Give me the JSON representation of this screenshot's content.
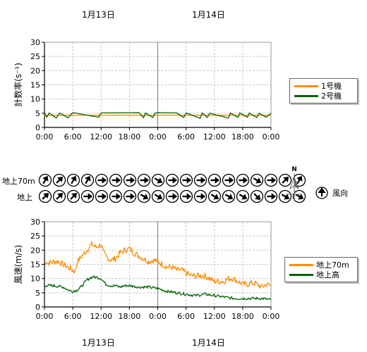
{
  "dates": {
    "top": [
      "1月13日",
      "1月14日"
    ],
    "bottom": [
      "1月13日",
      "1月14日"
    ]
  },
  "time_ticks": [
    "0:00",
    "6:00",
    "12:00",
    "18:00",
    "0:00",
    "6:00",
    "12:00",
    "18:00",
    "0:00"
  ],
  "wind_direction": {
    "rows": [
      {
        "label": "地上70m",
        "angles": [
          30,
          45,
          30,
          30,
          90,
          90,
          90,
          90,
          120,
          90,
          90,
          90,
          90,
          90,
          90,
          120,
          90,
          45,
          30
        ]
      },
      {
        "label": "地上",
        "angles": [
          45,
          45,
          45,
          90,
          90,
          90,
          90,
          120,
          120,
          90,
          90,
          90,
          120,
          120,
          120,
          135,
          90,
          120,
          120
        ]
      }
    ],
    "north_label": "N",
    "legend_label": "風向"
  },
  "chart_data": [
    {
      "type": "line",
      "ylabel": "計数率(s⁻¹)",
      "ylim": [
        0,
        30
      ],
      "yticks": [
        0,
        5,
        10,
        15,
        20,
        25,
        30
      ],
      "x_range_hours": [
        0,
        48
      ],
      "series": [
        {
          "name": "1号機",
          "color": "#ff8c00",
          "values": [
            [
              0,
              4.3
            ],
            [
              6,
              4.3
            ],
            [
              12,
              4.3
            ],
            [
              18,
              4.3
            ],
            [
              24,
              4.3
            ],
            [
              30,
              4.3
            ],
            [
              36,
              4.3
            ],
            [
              42,
              4.3
            ],
            [
              48,
              4.3
            ]
          ]
        },
        {
          "name": "2号機",
          "color": "#006400",
          "values": [
            [
              0,
              5.2
            ],
            [
              0.5,
              3.6
            ],
            [
              1,
              5.1
            ],
            [
              2.5,
              3.3
            ],
            [
              3.2,
              5.1
            ],
            [
              5,
              3.4
            ],
            [
              6,
              5.2
            ],
            [
              11.5,
              3.6
            ],
            [
              12,
              5.1
            ],
            [
              20,
              5.2
            ],
            [
              21,
              3.4
            ],
            [
              21.4,
              5.1
            ],
            [
              23,
              3.5
            ],
            [
              23.4,
              5.0
            ],
            [
              24,
              5.2
            ],
            [
              28,
              5.1
            ],
            [
              29.5,
              3.5
            ],
            [
              30,
              5.1
            ],
            [
              33,
              3.2
            ],
            [
              33.4,
              5.1
            ],
            [
              34.5,
              3.5
            ],
            [
              35,
              5.0
            ],
            [
              39,
              3.3
            ],
            [
              39.4,
              5.1
            ],
            [
              41,
              3.5
            ],
            [
              41.4,
              5.1
            ],
            [
              43,
              3.6
            ],
            [
              43.4,
              5.1
            ],
            [
              45,
              3.5
            ],
            [
              45.5,
              5.0
            ],
            [
              47,
              3.6
            ],
            [
              48,
              5.0
            ]
          ]
        }
      ]
    },
    {
      "type": "line",
      "ylabel": "風速(m/s)",
      "ylim": [
        0,
        30
      ],
      "yticks": [
        0,
        5,
        10,
        15,
        20,
        25,
        30
      ],
      "x_range_hours": [
        0,
        48
      ],
      "series": [
        {
          "name": "地上70m",
          "color": "#ff8c00",
          "values": [
            [
              0,
              16
            ],
            [
              1,
              15.5
            ],
            [
              2,
              16
            ],
            [
              3,
              16
            ],
            [
              4,
              15
            ],
            [
              5,
              14
            ],
            [
              6,
              13
            ],
            [
              6.5,
              12.5
            ],
            [
              7,
              16
            ],
            [
              8,
              18
            ],
            [
              9,
              20
            ],
            [
              10,
              22
            ],
            [
              11,
              21
            ],
            [
              12,
              22
            ],
            [
              12.5,
              19
            ],
            [
              13,
              18
            ],
            [
              14,
              16.5
            ],
            [
              15,
              17
            ],
            [
              16,
              19
            ],
            [
              17,
              20
            ],
            [
              18,
              20.5
            ],
            [
              19,
              19
            ],
            [
              20,
              18
            ],
            [
              21,
              17
            ],
            [
              22,
              16
            ],
            [
              23,
              16.5
            ],
            [
              24,
              16
            ],
            [
              25,
              15
            ],
            [
              26,
              14
            ],
            [
              27,
              14
            ],
            [
              28,
              13
            ],
            [
              29,
              13
            ],
            [
              30,
              12
            ],
            [
              31,
              11
            ],
            [
              32,
              11
            ],
            [
              33,
              11
            ],
            [
              34,
              11
            ],
            [
              35,
              10
            ],
            [
              36,
              9
            ],
            [
              37,
              9
            ],
            [
              38,
              9
            ],
            [
              39,
              10
            ],
            [
              40,
              10
            ],
            [
              41,
              9
            ],
            [
              42,
              8
            ],
            [
              43,
              8
            ],
            [
              44,
              8.5
            ],
            [
              45,
              8
            ],
            [
              46,
              7
            ],
            [
              47,
              8
            ],
            [
              48,
              7.5
            ]
          ]
        },
        {
          "name": "地上高",
          "color": "#006400",
          "values": [
            [
              0,
              7.5
            ],
            [
              2,
              7.5
            ],
            [
              4,
              7
            ],
            [
              5,
              6
            ],
            [
              6,
              5.5
            ],
            [
              7,
              6
            ],
            [
              8,
              7.5
            ],
            [
              9,
              9.5
            ],
            [
              10,
              10.5
            ],
            [
              11,
              10.5
            ],
            [
              12,
              10
            ],
            [
              13,
              8
            ],
            [
              14,
              7.5
            ],
            [
              15,
              7.5
            ],
            [
              16,
              7
            ],
            [
              17,
              7.5
            ],
            [
              18,
              7.5
            ],
            [
              20,
              7
            ],
            [
              22,
              7
            ],
            [
              24,
              6.5
            ],
            [
              26,
              5.5
            ],
            [
              28,
              5
            ],
            [
              30,
              4.5
            ],
            [
              32,
              4
            ],
            [
              34,
              4.5
            ],
            [
              36,
              4
            ],
            [
              38,
              3.5
            ],
            [
              40,
              3
            ],
            [
              42,
              3
            ],
            [
              44,
              3
            ],
            [
              46,
              3
            ],
            [
              48,
              2.5
            ]
          ]
        }
      ]
    }
  ]
}
